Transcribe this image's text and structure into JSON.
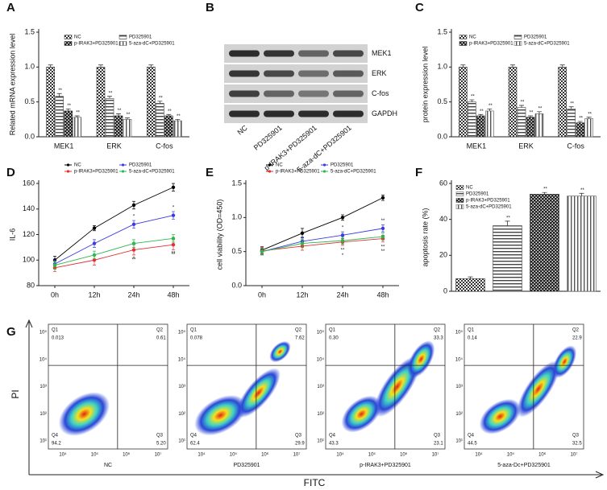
{
  "chart_data": [
    {
      "panel": "A",
      "type": "bar",
      "y_label": "Related mRNA expression level",
      "categories": [
        "MEK1",
        "ERK",
        "C-fos"
      ],
      "series": [
        {
          "name": "NC",
          "color": "#333333",
          "values": [
            1.0,
            1.0,
            1.0
          ],
          "errors": [
            0.03,
            0.03,
            0.03
          ],
          "significance": [
            null,
            null,
            null
          ]
        },
        {
          "name": "PD325901",
          "color": "#444444",
          "values": [
            0.58,
            0.55,
            0.48
          ],
          "errors": [
            0.04,
            0.03,
            0.03
          ],
          "significance": [
            "**",
            "**",
            "**"
          ]
        },
        {
          "name": "p-IRAK3+PD325901",
          "color": "#222222",
          "values": [
            0.37,
            0.3,
            0.3
          ],
          "errors": [
            0.03,
            0.03,
            0.02
          ],
          "significance": [
            "**",
            "**",
            "**"
          ]
        },
        {
          "name": "5-aza-dC+PD325901",
          "color": "#555555",
          "values": [
            0.28,
            0.25,
            0.23
          ],
          "errors": [
            0.02,
            0.02,
            0.02
          ],
          "significance": [
            "**",
            "**",
            "**"
          ]
        }
      ],
      "ylim": [
        0,
        1.5
      ],
      "yticks": [
        {
          "value": 0,
          "label": "0.0"
        },
        0.5,
        {
          "value": 1,
          "label": "1.0"
        },
        1.5
      ]
    },
    {
      "panel": "C",
      "type": "bar",
      "y_label": "protein expression level",
      "categories": [
        "MEK1",
        "ERK",
        "C-fos"
      ],
      "series": [
        {
          "name": "NC",
          "color": "#333333",
          "values": [
            1.0,
            1.0,
            1.0
          ],
          "errors": [
            0.03,
            0.03,
            0.03
          ],
          "significance": [
            null,
            null,
            null
          ]
        },
        {
          "name": "PD325901",
          "color": "#444444",
          "values": [
            0.5,
            0.42,
            0.4
          ],
          "errors": [
            0.03,
            0.03,
            0.03
          ],
          "significance": [
            "**",
            "**",
            "**"
          ]
        },
        {
          "name": "p-IRAK3+PD325901",
          "color": "#222222",
          "values": [
            0.3,
            0.28,
            0.2
          ],
          "errors": [
            0.02,
            0.02,
            0.02
          ],
          "significance": [
            "**",
            "**",
            "**"
          ]
        },
        {
          "name": "5-aza-dC+PD325901",
          "color": "#555555",
          "values": [
            0.37,
            0.33,
            0.26
          ],
          "errors": [
            0.03,
            0.03,
            0.02
          ],
          "significance": [
            "**",
            "**",
            "**"
          ]
        }
      ],
      "ylim": [
        0,
        1.5
      ],
      "yticks": [
        {
          "value": 0,
          "label": "0.0"
        },
        0.5,
        {
          "value": 1,
          "label": "1.0"
        },
        1.5
      ]
    },
    {
      "panel": "D",
      "type": "line",
      "y_label": "IL-6",
      "categories": [
        "0h",
        "12h",
        "24h",
        "48h"
      ],
      "series": [
        {
          "name": "NC",
          "color": "#000000",
          "values": [
            100,
            125,
            143,
            157
          ],
          "errors": [
            3,
            2,
            3,
            3
          ],
          "significance": [
            null,
            null,
            null,
            null
          ]
        },
        {
          "name": "PD325901",
          "color": "#3a3adf",
          "values": [
            97,
            113,
            128,
            135
          ],
          "errors": [
            3,
            3,
            3,
            3
          ],
          "significance": [
            null,
            null,
            "*",
            "*"
          ]
        },
        {
          "name": "p-IRAK3+PD325901",
          "color": "#e03030",
          "values": [
            94,
            100,
            108,
            112
          ],
          "errors": [
            3,
            4,
            4,
            4
          ],
          "significance": [
            null,
            null,
            "**",
            "**"
          ]
        },
        {
          "name": "5-aza-dC+PD325901",
          "color": "#2db84d",
          "values": [
            96,
            104,
            113,
            117
          ],
          "errors": [
            3,
            3,
            3,
            3
          ],
          "significance": [
            null,
            null,
            "*",
            "**"
          ]
        }
      ],
      "ylim": [
        80,
        160
      ],
      "yticks": [
        80,
        100,
        120,
        140,
        160
      ]
    },
    {
      "panel": "E",
      "type": "line",
      "y_label": "cell viability (OD=450)",
      "categories": [
        "0h",
        "12h",
        "24h",
        "48h"
      ],
      "series": [
        {
          "name": "NC",
          "color": "#000000",
          "values": [
            0.52,
            0.77,
            1.0,
            1.29
          ],
          "errors": [
            0.05,
            0.07,
            0.04,
            0.04
          ],
          "significance": [
            null,
            null,
            null,
            null
          ]
        },
        {
          "name": "PD325901",
          "color": "#3a3adf",
          "values": [
            0.5,
            0.65,
            0.74,
            0.84
          ],
          "errors": [
            0.05,
            0.06,
            0.05,
            0.05
          ],
          "significance": [
            null,
            null,
            "*",
            "**"
          ]
        },
        {
          "name": "p-IRAK3+PD325901",
          "color": "#e03030",
          "values": [
            0.51,
            0.58,
            0.64,
            0.69
          ],
          "errors": [
            0.05,
            0.06,
            0.05,
            0.05
          ],
          "significance": [
            null,
            null,
            "**",
            "**"
          ]
        },
        {
          "name": "5-aza-dC+PD325901",
          "color": "#2db84d",
          "values": [
            0.5,
            0.62,
            0.66,
            0.72
          ],
          "errors": [
            0.05,
            0.06,
            0.05,
            0.05
          ],
          "significance": [
            null,
            null,
            "*",
            "**"
          ]
        }
      ],
      "ylim": [
        0,
        1.5
      ],
      "yticks": [
        {
          "value": 0,
          "label": "0.0"
        },
        0.5,
        {
          "value": 1,
          "label": "1.0"
        },
        1.5
      ]
    },
    {
      "panel": "F",
      "type": "bar",
      "y_label": "apoptosis rate (%)",
      "categories": [
        null
      ],
      "series": [
        {
          "name": "NC",
          "color": "#333333",
          "values": [
            7
          ],
          "errors": [
            1
          ],
          "significance": [
            null
          ]
        },
        {
          "name": "PD325901",
          "color": "#444444",
          "values": [
            36.5
          ],
          "errors": [
            2.5
          ],
          "significance": [
            "**"
          ]
        },
        {
          "name": "p-IRAK3+PD325901",
          "color": "#222222",
          "values": [
            54
          ],
          "errors": [
            1
          ],
          "significance": [
            "**"
          ]
        },
        {
          "name": "5-aza-dC+PD325901",
          "color": "#555555",
          "values": [
            53
          ],
          "errors": [
            1.5
          ],
          "significance": [
            "**"
          ]
        }
      ],
      "ylim": [
        0,
        60
      ],
      "yticks": [
        0,
        20,
        40,
        60
      ]
    }
  ],
  "western_blot": {
    "panel": "B",
    "proteins": [
      "MEK1",
      "ERK",
      "C-fos",
      "GAPDH"
    ],
    "samples": [
      "NC",
      "PD325901",
      "p-IRAK3+PD325901",
      "5-aza-dC+PD325901"
    ]
  },
  "flow_cytometry": {
    "panel": "G",
    "y_axis_label": "PI",
    "x_axis_label": "FITC",
    "x_tick_labels": [
      "10⁴",
      "10⁵",
      "10⁶",
      "10⁷"
    ],
    "y_tick_labels": [
      "10¹",
      "10²",
      "10³",
      "10⁴",
      "10⁵"
    ],
    "panels": [
      {
        "label": "NC",
        "quadrants": [
          {
            "name": "Q1",
            "value": "0.013"
          },
          {
            "name": "Q2",
            "value": "0.61"
          },
          {
            "name": "Q3",
            "value": "5.20"
          },
          {
            "name": "Q4",
            "value": "94.2"
          }
        ]
      },
      {
        "label": "PD325901",
        "quadrants": [
          {
            "name": "Q1",
            "value": "0.078"
          },
          {
            "name": "Q2",
            "value": "7.62"
          },
          {
            "name": "Q3",
            "value": "29.9"
          },
          {
            "name": "Q4",
            "value": "62.4"
          }
        ]
      },
      {
        "label": "p-IRAK3+PD325901",
        "quadrants": [
          {
            "name": "Q1",
            "value": "0.30"
          },
          {
            "name": "Q2",
            "value": "33.3"
          },
          {
            "name": "Q3",
            "value": "23.1"
          },
          {
            "name": "Q4",
            "value": "43.3"
          }
        ]
      },
      {
        "label": "5-aza-Dc+PD325901",
        "quadrants": [
          {
            "name": "Q1",
            "value": "0.14"
          },
          {
            "name": "Q2",
            "value": "22.9"
          },
          {
            "name": "Q3",
            "value": "32.5"
          },
          {
            "name": "Q4",
            "value": "44.5"
          }
        ]
      }
    ]
  }
}
